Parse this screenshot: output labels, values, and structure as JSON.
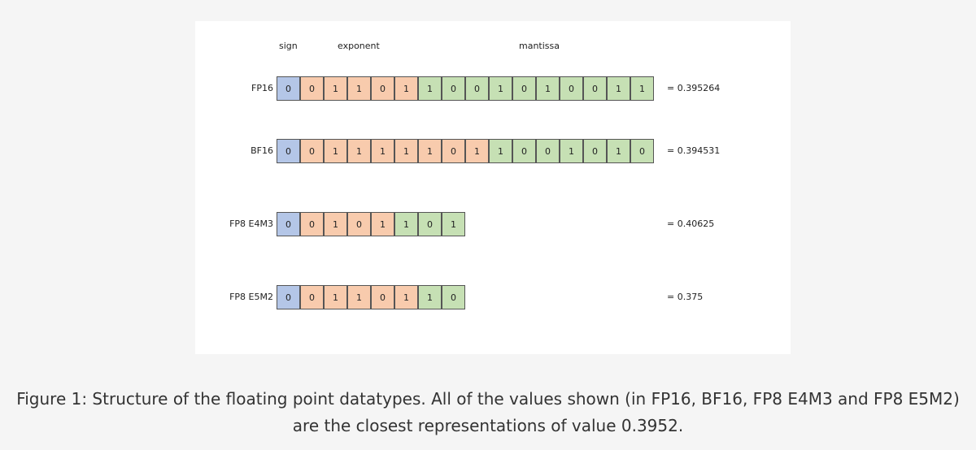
{
  "headers": {
    "sign": "sign",
    "exponent": "exponent",
    "mantissa": "mantissa"
  },
  "colors": {
    "sign": "#b4c6e7",
    "exponent": "#f8cbad",
    "mantissa": "#c6e0b4"
  },
  "rows": [
    {
      "label": "FP16",
      "bits": [
        "0",
        "0",
        "1",
        "1",
        "0",
        "1",
        "1",
        "0",
        "0",
        "1",
        "0",
        "1",
        "0",
        "0",
        "1",
        "1"
      ],
      "types": [
        "sign",
        "exponent",
        "exponent",
        "exponent",
        "exponent",
        "exponent",
        "mantissa",
        "mantissa",
        "mantissa",
        "mantissa",
        "mantissa",
        "mantissa",
        "mantissa",
        "mantissa",
        "mantissa",
        "mantissa"
      ],
      "result": "= 0.395264"
    },
    {
      "label": "BF16",
      "bits": [
        "0",
        "0",
        "1",
        "1",
        "1",
        "1",
        "1",
        "0",
        "1",
        "1",
        "0",
        "0",
        "1",
        "0",
        "1",
        "0"
      ],
      "types": [
        "sign",
        "exponent",
        "exponent",
        "exponent",
        "exponent",
        "exponent",
        "exponent",
        "exponent",
        "exponent",
        "mantissa",
        "mantissa",
        "mantissa",
        "mantissa",
        "mantissa",
        "mantissa",
        "mantissa"
      ],
      "result": "= 0.394531"
    },
    {
      "label": "FP8 E4M3",
      "bits": [
        "0",
        "0",
        "1",
        "0",
        "1",
        "1",
        "0",
        "1"
      ],
      "types": [
        "sign",
        "exponent",
        "exponent",
        "exponent",
        "exponent",
        "mantissa",
        "mantissa",
        "mantissa"
      ],
      "result": "= 0.40625"
    },
    {
      "label": "FP8 E5M2",
      "bits": [
        "0",
        "0",
        "1",
        "1",
        "0",
        "1",
        "1",
        "0"
      ],
      "types": [
        "sign",
        "exponent",
        "exponent",
        "exponent",
        "exponent",
        "exponent",
        "mantissa",
        "mantissa"
      ],
      "result": "= 0.375"
    }
  ],
  "caption": "Figure 1: Structure of the floating point datatypes. All of the values shown (in FP16, BF16, FP8 E4M3 and FP8 E5M2) are the closest representations of value 0.3952."
}
